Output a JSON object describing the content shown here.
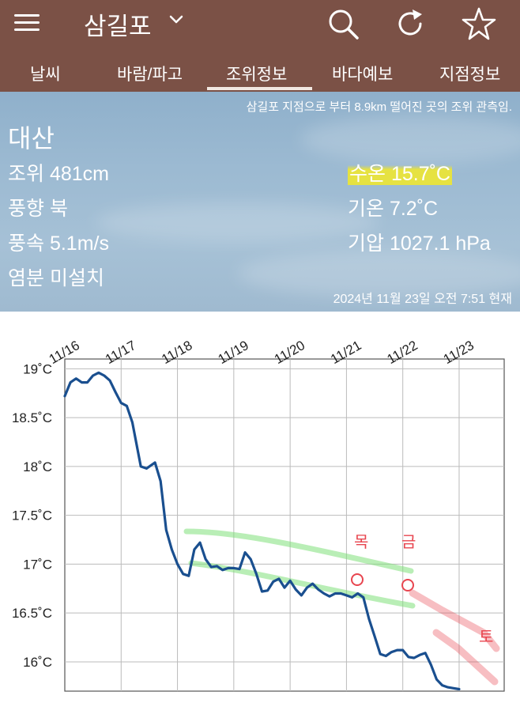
{
  "header": {
    "title": "삼길포",
    "icons": [
      "menu-icon",
      "chevron-down-icon",
      "search-icon",
      "refresh-icon",
      "star-icon"
    ]
  },
  "tabs": [
    {
      "label": "날씨"
    },
    {
      "label": "바람/파고"
    },
    {
      "label": "조위정보",
      "active": true
    },
    {
      "label": "바다예보"
    },
    {
      "label": "지점정보"
    }
  ],
  "station": {
    "notice": "삼길포 지점으로 부터 8.9km 떨어진 곳의 조위 관측임.",
    "name": "대산",
    "tide": "조위 481cm",
    "wind_dir": "풍향 북",
    "wind_speed": "풍속 5.1m/s",
    "salinity": "염분 미설치",
    "water_temp": "수온 15.7˚C",
    "air_temp": "기온 7.2˚C",
    "pressure": "기압 1027.1 hPa",
    "timestamp": "2024년 11월 23일 오전 7:51 현재"
  },
  "colors": {
    "header_bg": "#7b5146",
    "line": "#1a4f8f",
    "highlight": "#f3e928",
    "annotation_green": "#7fe07a",
    "annotation_red": "#e8454f"
  },
  "chart_data": {
    "type": "line",
    "x_tick_labels": [
      "11/16",
      "11/17",
      "11/18",
      "11/19",
      "11/20",
      "11/21",
      "11/22",
      "11/23"
    ],
    "y_tick_labels": [
      "19˚C",
      "18.5˚C",
      "18˚C",
      "17.5˚C",
      "17˚C",
      "16.5˚C",
      "16˚C"
    ],
    "y_ticks": [
      19,
      18.5,
      18,
      17.5,
      17,
      16.5,
      16
    ],
    "ylim": [
      15.7,
      19.1
    ],
    "xlim": [
      0,
      7.8
    ],
    "grid": true,
    "series": [
      {
        "x": [
          0,
          0.1,
          0.2,
          0.3,
          0.4,
          0.5,
          0.6,
          0.7,
          0.8,
          0.9,
          1.0,
          1.1,
          1.2,
          1.35,
          1.45,
          1.6,
          1.7,
          1.8,
          1.9,
          2.0,
          2.1,
          2.2,
          2.3,
          2.4,
          2.5,
          2.6,
          2.7,
          2.8,
          2.9,
          3.0,
          3.1,
          3.2,
          3.3,
          3.4,
          3.5,
          3.6,
          3.7,
          3.8,
          3.9,
          4.0,
          4.1,
          4.2,
          4.3,
          4.4,
          4.5,
          4.6,
          4.7,
          4.8,
          4.9,
          5.0,
          5.1,
          5.2,
          5.3,
          5.4,
          5.5,
          5.6,
          5.7,
          5.8,
          5.9,
          6.0,
          6.1,
          6.2,
          6.3,
          6.4,
          6.5,
          6.6,
          6.7,
          6.8,
          6.9,
          7.0
        ],
        "y": [
          18.72,
          18.86,
          18.9,
          18.86,
          18.86,
          18.93,
          18.96,
          18.93,
          18.88,
          18.76,
          18.65,
          18.62,
          18.45,
          18.0,
          17.98,
          18.04,
          17.85,
          17.35,
          17.15,
          17.0,
          16.9,
          16.88,
          17.15,
          17.22,
          17.05,
          16.97,
          16.98,
          16.94,
          16.96,
          16.96,
          16.95,
          17.12,
          17.05,
          16.9,
          16.72,
          16.73,
          16.82,
          16.85,
          16.76,
          16.83,
          16.74,
          16.68,
          16.76,
          16.8,
          16.74,
          16.7,
          16.67,
          16.7,
          16.7,
          16.68,
          16.66,
          16.7,
          16.66,
          16.44,
          16.26,
          16.08,
          16.06,
          16.1,
          16.12,
          16.12,
          16.05,
          16.04,
          16.07,
          16.09,
          15.97,
          15.82,
          15.76,
          15.74,
          15.73,
          15.72
        ]
      }
    ]
  },
  "annotations": {
    "red_label_1": "목",
    "red_label_2": "금",
    "red_label_3": "토"
  }
}
